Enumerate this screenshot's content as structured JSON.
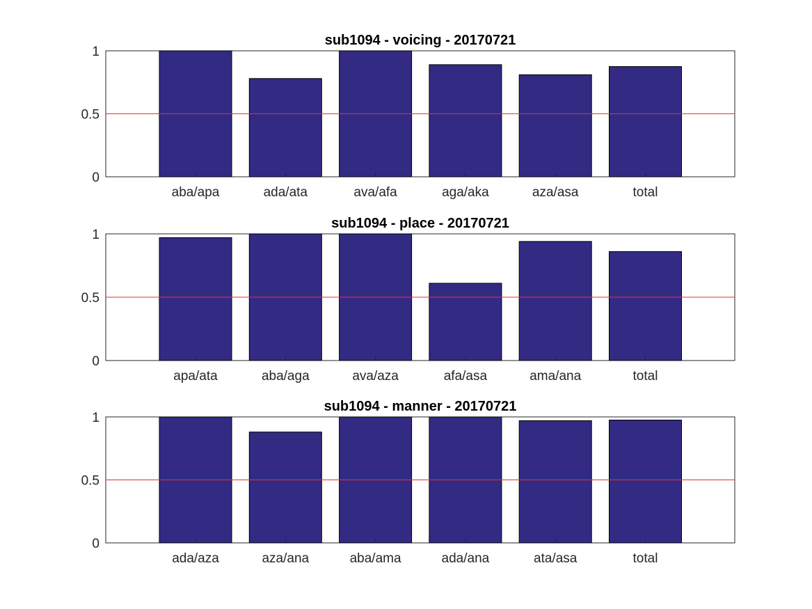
{
  "chart_data": [
    {
      "type": "bar",
      "title": "sub1094 - voicing - 20170721",
      "categories": [
        "aba/apa",
        "ada/ata",
        "ava/afa",
        "aga/aka",
        "aza/asa",
        "total"
      ],
      "values": [
        1.0,
        0.78,
        1.0,
        0.89,
        0.81,
        0.875
      ],
      "ylim": [
        0,
        1
      ],
      "yticks": [
        0,
        0.5,
        1
      ],
      "ytick_labels": [
        "0",
        "0.5",
        "1"
      ],
      "reference_line": 0.5,
      "grid": false
    },
    {
      "type": "bar",
      "title": "sub1094 - place - 20170721",
      "categories": [
        "apa/ata",
        "aba/aga",
        "ava/aza",
        "afa/asa",
        "ama/ana",
        "total"
      ],
      "values": [
        0.97,
        1.0,
        1.0,
        0.61,
        0.94,
        0.86
      ],
      "ylim": [
        0,
        1
      ],
      "yticks": [
        0,
        0.5,
        1
      ],
      "ytick_labels": [
        "0",
        "0.5",
        "1"
      ],
      "reference_line": 0.5,
      "grid": false
    },
    {
      "type": "bar",
      "title": "sub1094 - manner - 20170721",
      "categories": [
        "ada/aza",
        "aza/ana",
        "aba/ama",
        "ada/ana",
        "ata/asa",
        "total"
      ],
      "values": [
        1.0,
        0.88,
        1.0,
        1.0,
        0.97,
        0.975
      ],
      "ylim": [
        0,
        1
      ],
      "yticks": [
        0,
        0.5,
        1
      ],
      "ytick_labels": [
        "0",
        "0.5",
        "1"
      ],
      "reference_line": 0.5,
      "grid": false
    }
  ],
  "colors": {
    "bar_fill": "#332A83",
    "reference_line": "#E8312E"
  }
}
